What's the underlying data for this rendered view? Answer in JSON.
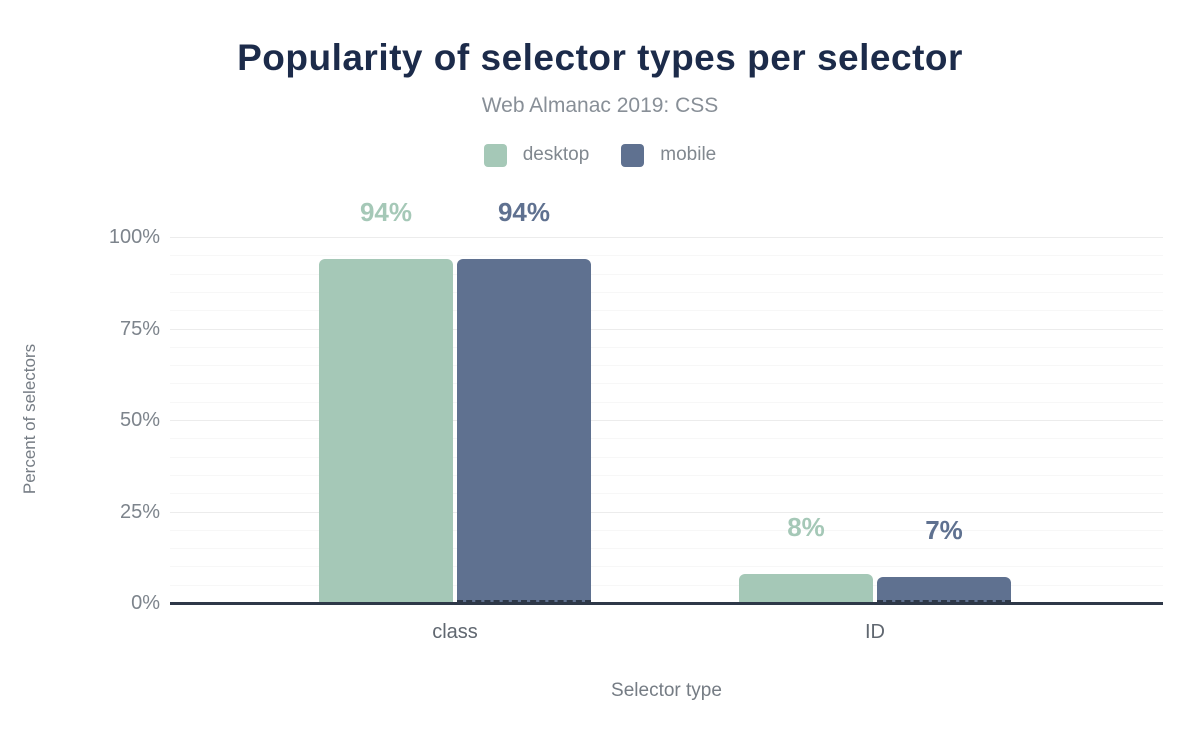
{
  "chart_data": {
    "type": "bar",
    "title": "Popularity of selector types per selector",
    "subtitle": "Web Almanac 2019: CSS",
    "xlabel": "Selector type",
    "ylabel": "Percent of selectors",
    "categories": [
      "class",
      "ID"
    ],
    "series": [
      {
        "name": "desktop",
        "color": "#a5c8b7",
        "values": [
          94,
          8
        ],
        "value_labels": [
          "94%",
          "8%"
        ]
      },
      {
        "name": "mobile",
        "color": "#5f7190",
        "values": [
          94,
          7
        ],
        "value_labels": [
          "94%",
          "7%"
        ]
      }
    ],
    "ylim": [
      0,
      100
    ],
    "yticks": [
      {
        "value": 0,
        "label": "0%"
      },
      {
        "value": 25,
        "label": "25%"
      },
      {
        "value": 50,
        "label": "50%"
      },
      {
        "value": 75,
        "label": "75%"
      },
      {
        "value": 100,
        "label": "100%"
      }
    ],
    "minor_tick_step": 5,
    "grid": true,
    "legend_position": "top"
  },
  "colors": {
    "title": "#1c2b4a",
    "subtitle": "#888f97",
    "legend_label": "#81888f",
    "tick_label": "#7d848c",
    "category_label": "#606770",
    "axis_title": "#757c84",
    "grid_major": "#ececec",
    "grid_minor": "#f7f7f7",
    "axis_line": "#2e3848",
    "mobile_dash": "#2e3848",
    "background": "#ffffff"
  }
}
